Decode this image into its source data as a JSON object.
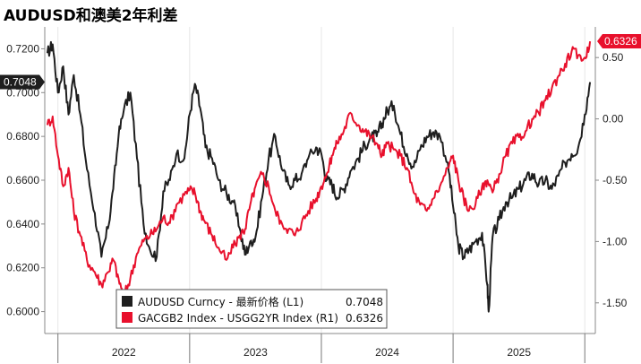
{
  "chart_data": {
    "type": "line",
    "title": "AUDUSD和澳美2年利差",
    "x_tick_labels": [
      "2022",
      "2023",
      "2024",
      "2025"
    ],
    "left_axis": {
      "range": [
        0.59,
        0.73
      ],
      "ticks": [
        "0.7200",
        "0.7000",
        "0.6800",
        "0.6600",
        "0.6400",
        "0.6200",
        "0.6000"
      ],
      "tick_values": [
        0.72,
        0.7,
        0.68,
        0.66,
        0.64,
        0.62,
        0.6
      ]
    },
    "right_axis": {
      "range": [
        -1.75,
        0.75
      ],
      "ticks": [
        "0.50",
        "0.00",
        "-0.50",
        "-1.00",
        "-1.50"
      ],
      "tick_values": [
        0.5,
        0.0,
        -0.5,
        -1.0,
        -1.5
      ]
    },
    "series": [
      {
        "name": "AUDUSD Curncy - 最新价格 (L1)",
        "last_label": "0.7048",
        "axis": "left",
        "color": "#1e1e1e",
        "x": [
          2021.92,
          2021.96,
          2022.0,
          2022.04,
          2022.08,
          2022.12,
          2022.17,
          2022.22,
          2022.28,
          2022.33,
          2022.38,
          2022.42,
          2022.46,
          2022.5,
          2022.55,
          2022.6,
          2022.65,
          2022.7,
          2022.75,
          2022.8,
          2022.85,
          2022.9,
          2022.96,
          2023.0,
          2023.04,
          2023.08,
          2023.12,
          2023.17,
          2023.22,
          2023.28,
          2023.33,
          2023.38,
          2023.42,
          2023.46,
          2023.5,
          2023.55,
          2023.6,
          2023.65,
          2023.7,
          2023.75,
          2023.8,
          2023.85,
          2023.9,
          2023.96,
          2024.0,
          2024.04,
          2024.08,
          2024.12,
          2024.17,
          2024.22,
          2024.28,
          2024.33,
          2024.38,
          2024.42,
          2024.46,
          2024.5,
          2024.55,
          2024.6,
          2024.65,
          2024.7,
          2024.75,
          2024.8,
          2024.85,
          2024.9,
          2024.96,
          2025.0,
          2025.04,
          2025.08,
          2025.12,
          2025.17,
          2025.22,
          2025.26,
          2025.27,
          2025.3,
          2025.35,
          2025.4,
          2025.45,
          2025.5,
          2025.55,
          2025.6,
          2025.65,
          2025.7,
          2025.75,
          2025.8,
          2025.85,
          2025.9,
          2025.95,
          2026.0,
          2026.04
        ],
        "values": [
          0.718,
          0.722,
          0.7,
          0.712,
          0.69,
          0.708,
          0.69,
          0.665,
          0.645,
          0.625,
          0.638,
          0.656,
          0.68,
          0.692,
          0.7,
          0.67,
          0.64,
          0.628,
          0.625,
          0.655,
          0.66,
          0.672,
          0.67,
          0.69,
          0.704,
          0.693,
          0.675,
          0.67,
          0.66,
          0.654,
          0.65,
          0.638,
          0.626,
          0.632,
          0.634,
          0.652,
          0.67,
          0.68,
          0.665,
          0.658,
          0.66,
          0.663,
          0.67,
          0.675,
          0.672,
          0.66,
          0.658,
          0.652,
          0.656,
          0.664,
          0.67,
          0.676,
          0.68,
          0.68,
          0.686,
          0.692,
          0.694,
          0.681,
          0.672,
          0.666,
          0.674,
          0.68,
          0.682,
          0.68,
          0.668,
          0.648,
          0.63,
          0.625,
          0.628,
          0.632,
          0.636,
          0.612,
          0.6,
          0.634,
          0.642,
          0.65,
          0.652,
          0.656,
          0.66,
          0.663,
          0.658,
          0.66,
          0.656,
          0.662,
          0.668,
          0.672,
          0.675,
          0.69,
          0.7048
        ]
      },
      {
        "name": "GACGB2 Index - USGG2YR Index (R1)",
        "last_label": "0.6326",
        "axis": "right",
        "color": "#e8102c",
        "x": [
          2021.92,
          2021.96,
          2022.0,
          2022.04,
          2022.08,
          2022.12,
          2022.17,
          2022.22,
          2022.28,
          2022.33,
          2022.38,
          2022.42,
          2022.46,
          2022.5,
          2022.55,
          2022.6,
          2022.65,
          2022.7,
          2022.75,
          2022.8,
          2022.85,
          2022.9,
          2022.96,
          2023.0,
          2023.04,
          2023.08,
          2023.12,
          2023.17,
          2023.22,
          2023.28,
          2023.33,
          2023.38,
          2023.42,
          2023.46,
          2023.5,
          2023.55,
          2023.6,
          2023.65,
          2023.7,
          2023.75,
          2023.8,
          2023.85,
          2023.9,
          2023.96,
          2024.0,
          2024.04,
          2024.08,
          2024.12,
          2024.17,
          2024.22,
          2024.28,
          2024.33,
          2024.38,
          2024.42,
          2024.46,
          2024.5,
          2024.55,
          2024.6,
          2024.65,
          2024.7,
          2024.75,
          2024.8,
          2024.85,
          2024.9,
          2024.96,
          2025.0,
          2025.04,
          2025.08,
          2025.12,
          2025.17,
          2025.22,
          2025.26,
          2025.3,
          2025.35,
          2025.4,
          2025.45,
          2025.5,
          2025.55,
          2025.6,
          2025.65,
          2025.7,
          2025.75,
          2025.8,
          2025.85,
          2025.9,
          2025.95,
          2026.0,
          2026.04
        ],
        "values": [
          -0.05,
          0.02,
          -0.3,
          -0.55,
          -0.4,
          -0.75,
          -0.95,
          -1.15,
          -1.25,
          -1.35,
          -1.25,
          -1.15,
          -1.3,
          -1.45,
          -1.3,
          -1.1,
          -1.0,
          -0.95,
          -0.9,
          -0.8,
          -0.85,
          -0.7,
          -0.62,
          -0.58,
          -0.6,
          -0.75,
          -0.85,
          -0.95,
          -1.05,
          -1.15,
          -1.05,
          -0.95,
          -0.9,
          -0.7,
          -0.55,
          -0.45,
          -0.55,
          -0.75,
          -0.85,
          -0.9,
          -0.95,
          -0.85,
          -0.75,
          -0.65,
          -0.55,
          -0.45,
          -0.3,
          -0.2,
          -0.1,
          0.05,
          -0.05,
          -0.1,
          -0.15,
          -0.2,
          -0.3,
          -0.2,
          -0.25,
          -0.3,
          -0.4,
          -0.6,
          -0.7,
          -0.75,
          -0.65,
          -0.55,
          -0.4,
          -0.3,
          -0.5,
          -0.65,
          -0.75,
          -0.7,
          -0.55,
          -0.5,
          -0.6,
          -0.45,
          -0.3,
          -0.2,
          -0.15,
          -0.1,
          0.0,
          0.05,
          0.15,
          0.25,
          0.35,
          0.45,
          0.55,
          0.52,
          0.5,
          0.6326
        ]
      }
    ],
    "legend": {
      "placement": "bottom-left"
    }
  }
}
